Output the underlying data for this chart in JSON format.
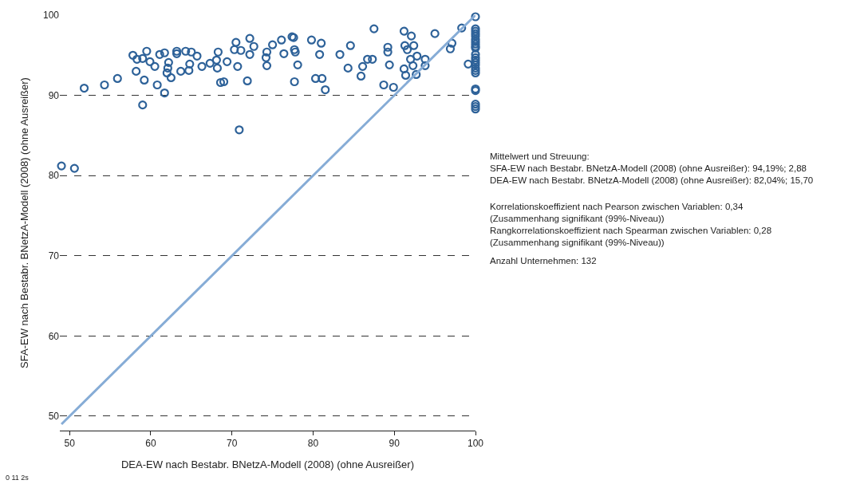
{
  "chart_data": {
    "type": "scatter",
    "xlabel": "DEA-EW nach Bestabr. BNetzA-Modell (2008) (ohne Ausreißer)",
    "ylabel": "SFA-EW nach Bestabr. BNetzA-Modell (2008) (ohne Ausreißer)",
    "xlim": [
      48.8,
      100
    ],
    "ylim": [
      48.2,
      100
    ],
    "xticks": [
      50,
      60,
      70,
      80,
      90,
      100
    ],
    "yticks": [
      50,
      60,
      70,
      80,
      90,
      100
    ],
    "grid": "y",
    "marker": "circle",
    "series": [
      {
        "color": "#2e6299",
        "x": [
          49.0,
          50.6,
          51.8,
          54.3,
          55.9,
          57.8,
          58.3,
          59.0,
          59.5,
          59.9,
          60.5,
          58.2,
          59.2,
          60.8,
          61.7,
          59.0,
          61.1,
          61.7,
          62.2,
          62.1,
          62.0,
          62.5,
          63.2,
          63.2,
          63.7,
          64.3,
          65.0,
          64.8,
          64.7,
          65.7,
          66.3,
          67.3,
          68.1,
          68.3,
          68.2,
          68.6,
          69.0,
          69.4,
          70.5,
          70.3,
          71.1,
          70.7,
          71.9,
          72.2,
          72.7,
          72.2,
          70.9,
          75.0,
          76.1,
          77.4,
          77.6,
          74.3,
          74.2,
          74.3,
          76.4,
          77.7,
          77.8,
          78.1,
          77.7,
          79.8,
          81.0,
          80.8,
          80.3,
          81.1,
          81.5,
          83.3,
          84.6,
          84.3,
          86.1,
          85.9,
          86.7,
          87.3,
          87.5,
          89.2,
          89.2,
          89.4,
          88.7,
          89.9,
          91.2,
          92.1,
          91.3,
          91.6,
          92.4,
          92.8,
          92.0,
          92.3,
          93.8,
          93.8,
          91.2,
          91.4,
          92.7,
          95.0,
          97.1,
          96.9,
          98.3,
          99.1,
          100,
          100,
          100,
          100,
          100,
          100,
          100,
          100,
          100,
          100,
          100,
          100,
          100,
          100,
          100,
          100,
          100,
          100,
          100,
          100,
          100,
          100,
          100
        ],
        "values": [
          81.2,
          80.9,
          90.9,
          91.3,
          92.1,
          95.0,
          94.5,
          94.6,
          95.5,
          94.2,
          93.6,
          93.0,
          91.9,
          91.3,
          90.3,
          88.8,
          95.1,
          95.3,
          94.1,
          93.4,
          92.8,
          92.2,
          95.5,
          95.2,
          93.0,
          95.5,
          95.4,
          93.9,
          93.1,
          94.9,
          93.6,
          94.0,
          94.4,
          95.4,
          93.4,
          91.6,
          91.7,
          94.2,
          96.6,
          95.7,
          95.6,
          93.6,
          91.8,
          97.1,
          96.1,
          95.1,
          85.7,
          96.3,
          96.9,
          97.3,
          97.2,
          95.4,
          94.7,
          93.7,
          95.2,
          95.7,
          95.4,
          93.8,
          91.7,
          96.9,
          96.5,
          95.1,
          92.1,
          92.1,
          90.7,
          95.1,
          96.2,
          93.4,
          93.6,
          92.4,
          94.5,
          94.5,
          98.3,
          96.0,
          95.4,
          93.8,
          91.3,
          91.0,
          98.0,
          97.4,
          96.2,
          95.7,
          96.2,
          94.9,
          94.5,
          93.7,
          94.5,
          93.7,
          93.3,
          92.5,
          92.6,
          97.7,
          96.5,
          95.8,
          98.4,
          93.9,
          99.8,
          98.3,
          98.0,
          97.7,
          97.4,
          97.0,
          96.7,
          96.4,
          96.1,
          95.9,
          95.1,
          94.7,
          94.4,
          94.1,
          93.8,
          93.4,
          93.1,
          92.8,
          90.8,
          90.6,
          88.9,
          88.6,
          88.3
        ]
      },
      {
        "type": "line",
        "color": "#86acd6",
        "x": [
          49,
          100
        ],
        "values": [
          49,
          100
        ],
        "marker": "none"
      }
    ],
    "annotations": [
      "Mittelwert und Streuung:\nSFA-EW nach Bestabr. BNetzA-Modell (2008) (ohne Ausreißer): 94,19%; 2,88\nDEA-EW nach Bestabr. BNetzA-Modell (2008) (ohne Ausreißer): 82,04%; 15,70",
      "Korrelationskoeffizient nach Pearson zwischen Variablen: 0,34\n(Zusammenhang signifikant (99%-Niveau))\nRangkorrelationskoeffizient nach Spearman zwischen Variablen: 0,28\n(Zusammenhang signifikant (99%-Niveau))",
      "Anzahl Unternehmen: 132",
      "0 11 2s"
    ]
  }
}
